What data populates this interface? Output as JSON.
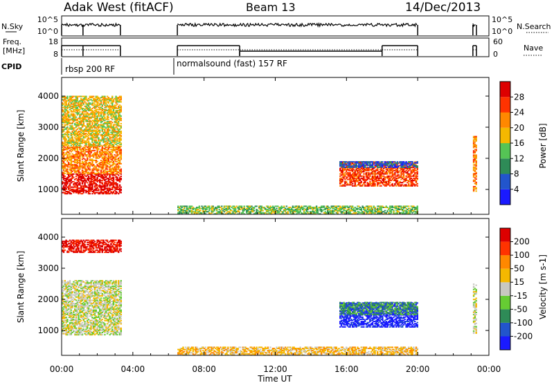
{
  "header": {
    "radar": "Adak West (fitACF)",
    "beam": "Beam 13",
    "date": "14/Dec/2013"
  },
  "noise_panel": {
    "left_label": "N.Sky",
    "left_ticks": [
      "10^5",
      "10^0"
    ],
    "right_label": "N.Search",
    "right_ticks": [
      "10^5",
      "10^0"
    ]
  },
  "freq_panel": {
    "left_label_1": "Freq.",
    "left_label_2": "[MHz]",
    "left_ticks": [
      "18",
      "8"
    ],
    "right_label": "Nave",
    "right_ticks": [
      "60",
      "0"
    ]
  },
  "cpid": {
    "label": "CPID",
    "programs": [
      "rbsp 200 RF",
      "normalsound (fast) 157 RF"
    ]
  },
  "chart_data": [
    {
      "type": "heatmap",
      "panel": "power",
      "ylabel": "Slant Range [km]",
      "ylim": [
        200,
        4600
      ],
      "yticks": [
        "1000",
        "2000",
        "3000",
        "4000"
      ],
      "xlim": [
        "00:00",
        "24:00"
      ],
      "xticks": [
        "00:00",
        "04:00",
        "08:00",
        "12:00",
        "16:00",
        "20:00",
        "00:00"
      ],
      "colorbar": {
        "label": "Power [dB]",
        "ticks": [
          "4",
          "8",
          "12",
          "16",
          "20",
          "24",
          "28"
        ],
        "range": [
          0,
          32
        ]
      },
      "colors": [
        "#1a1aff",
        "#2255cc",
        "#2e8b57",
        "#55c455",
        "#f5b800",
        "#ff8800",
        "#ff3300",
        "#dd0000"
      ],
      "regions": [
        {
          "t0": 0.0,
          "t1": 3.3,
          "r0": 850,
          "r1": 1500,
          "level": 7
        },
        {
          "t0": 0.0,
          "t1": 3.3,
          "r0": 1500,
          "r1": 2400,
          "level": 5
        },
        {
          "t0": 0.0,
          "t1": 3.3,
          "r0": 2400,
          "r1": 4000,
          "level": 4
        },
        {
          "t0": 6.5,
          "t1": 20.0,
          "r0": 200,
          "r1": 450,
          "level": 3
        },
        {
          "t0": 15.6,
          "t1": 20.0,
          "r0": 1100,
          "r1": 1900,
          "level": 6
        },
        {
          "t0": 15.6,
          "t1": 20.0,
          "r0": 1700,
          "r1": 1900,
          "level": 1
        },
        {
          "t0": 23.1,
          "t1": 23.3,
          "r0": 900,
          "r1": 2700,
          "level": 5
        }
      ]
    },
    {
      "type": "heatmap",
      "panel": "velocity",
      "ylabel": "Slant Range [km]",
      "ylim": [
        200,
        4600
      ],
      "yticks": [
        "1000",
        "2000",
        "3000",
        "4000"
      ],
      "xlim": [
        "00:00",
        "24:00"
      ],
      "xticks": [
        "00:00",
        "04:00",
        "08:00",
        "12:00",
        "16:00",
        "20:00",
        "00:00"
      ],
      "xlabel": "Time UT",
      "colorbar": {
        "label": "Velocity [m s-1]",
        "ticks": [
          "200",
          "100",
          "50",
          "15",
          "-15",
          "-50",
          "-100",
          "-200"
        ],
        "range": [
          -250,
          250
        ]
      },
      "colors": [
        "#1a1aff",
        "#2255cc",
        "#2e8b57",
        "#66cc33",
        "#c8c8c0",
        "#f5b800",
        "#ff8800",
        "#ff3300",
        "#dd0000"
      ],
      "regions": [
        {
          "t0": 0.0,
          "t1": 3.3,
          "r0": 850,
          "r1": 1500,
          "level": 4
        },
        {
          "t0": 0.0,
          "t1": 3.3,
          "r0": 1500,
          "r1": 2600,
          "level": 4
        },
        {
          "t0": 0.0,
          "t1": 3.3,
          "r0": 3500,
          "r1": 3900,
          "level": 8
        },
        {
          "t0": 6.5,
          "t1": 20.0,
          "r0": 200,
          "r1": 450,
          "level": 5
        },
        {
          "t0": 15.6,
          "t1": 20.0,
          "r0": 1100,
          "r1": 1900,
          "level": 0
        },
        {
          "t0": 15.6,
          "t1": 20.0,
          "r0": 1500,
          "r1": 1900,
          "level": 2
        },
        {
          "t0": 23.1,
          "t1": 23.3,
          "r0": 900,
          "r1": 2500,
          "level": 4
        }
      ]
    }
  ]
}
